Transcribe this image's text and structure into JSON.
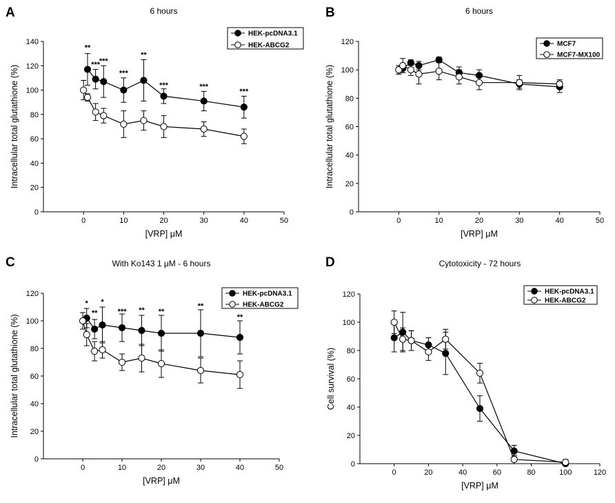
{
  "chart_data": [
    {
      "id": "A",
      "panel_letter": "A",
      "type": "line",
      "title": "6 hours",
      "xlabel": "[VRP] μM",
      "ylabel": "Intracellular total glutathione (%)",
      "xlim": [
        -10,
        50
      ],
      "ylim": [
        0,
        140
      ],
      "xticks": [
        0,
        10,
        20,
        30,
        40,
        50
      ],
      "yticks": [
        0,
        20,
        40,
        60,
        80,
        100,
        120,
        140
      ],
      "legend_position": "top-right",
      "x": [
        0,
        1,
        3,
        5,
        10,
        15,
        20,
        30,
        40
      ],
      "series": [
        {
          "name": "HEK-pcDNA3.1",
          "marker": "filled",
          "x": [
            1,
            3,
            5,
            10,
            15,
            20,
            30,
            40
          ],
          "values": [
            117,
            109,
            107,
            100,
            108,
            95,
            91,
            86
          ],
          "err": [
            13,
            8,
            13,
            10,
            17,
            6,
            8,
            9
          ]
        },
        {
          "name": "HEK-ABCG2",
          "marker": "open",
          "x": [
            0,
            1,
            3,
            5,
            10,
            15,
            20,
            30,
            40
          ],
          "values": [
            100,
            94,
            82,
            79,
            72,
            75,
            70,
            68,
            62
          ],
          "err": [
            8,
            3,
            7,
            6,
            11,
            8,
            9,
            6,
            6
          ]
        }
      ],
      "annotations": [
        {
          "x": 1,
          "label": "**",
          "y": 133
        },
        {
          "x": 3,
          "label": "***",
          "y": 119
        },
        {
          "x": 5,
          "label": "***",
          "y": 122
        },
        {
          "x": 10,
          "label": "***",
          "y": 112
        },
        {
          "x": 15,
          "label": "**",
          "y": 127
        },
        {
          "x": 20,
          "label": "***",
          "y": 102
        },
        {
          "x": 30,
          "label": "***",
          "y": 101
        },
        {
          "x": 40,
          "label": "***",
          "y": 97
        }
      ]
    },
    {
      "id": "B",
      "panel_letter": "B",
      "type": "line",
      "title": "6 hours",
      "xlabel": "[VRP] μM",
      "ylabel": "Intracellular total glutathione (%)",
      "xlim": [
        -10,
        50
      ],
      "ylim": [
        0,
        120
      ],
      "xticks": [
        0,
        10,
        20,
        30,
        40,
        50
      ],
      "yticks": [
        0,
        20,
        40,
        60,
        80,
        100,
        120
      ],
      "legend_position": "top-right",
      "series": [
        {
          "name": "MCF7",
          "marker": "filled",
          "x": [
            0,
            1,
            3,
            5,
            10,
            15,
            20,
            30,
            40
          ],
          "values": [
            100,
            101,
            105,
            103,
            107,
            98,
            96,
            90,
            88
          ],
          "err": [
            3,
            3,
            2,
            3,
            2,
            4,
            4,
            3,
            4
          ]
        },
        {
          "name": "MCF7-MX100",
          "marker": "open",
          "x": [
            0,
            1,
            3,
            5,
            10,
            15,
            20,
            30,
            40
          ],
          "values": [
            100,
            103,
            100,
            97,
            99,
            95,
            91,
            91,
            90
          ],
          "err": [
            3,
            5,
            4,
            7,
            6,
            5,
            5,
            5,
            3
          ]
        }
      ],
      "annotations": []
    },
    {
      "id": "C",
      "panel_letter": "C",
      "type": "line",
      "title": "With Ko143 1 μM - 6 hours",
      "xlabel": "[VRP] μM",
      "ylabel": "Intracellular total glutathione (%)",
      "xlim": [
        -10,
        50
      ],
      "ylim": [
        0,
        120
      ],
      "xticks": [
        0,
        10,
        20,
        30,
        40,
        50
      ],
      "yticks": [
        0,
        20,
        40,
        60,
        80,
        100,
        120
      ],
      "legend_position": "top-right",
      "series": [
        {
          "name": "HEK-pcDNA3.1",
          "marker": "filled",
          "x": [
            1,
            3,
            5,
            10,
            15,
            20,
            30,
            40
          ],
          "values": [
            102,
            94,
            97,
            95,
            93,
            91,
            91,
            88
          ],
          "err": [
            7,
            7,
            13,
            10,
            11,
            13,
            17,
            12
          ]
        },
        {
          "name": "HEK-ABCG2",
          "marker": "open",
          "x": [
            0,
            1,
            3,
            5,
            10,
            15,
            20,
            30,
            40
          ],
          "values": [
            100,
            90,
            78,
            79,
            70,
            73,
            69,
            64,
            61
          ],
          "err": [
            6,
            8,
            7,
            6,
            6,
            10,
            10,
            9,
            10
          ]
        }
      ],
      "annotations": [
        {
          "x": 1,
          "label": "*",
          "y": 111
        },
        {
          "x": 3,
          "label": "**",
          "y": 104
        },
        {
          "x": 5,
          "label": "*",
          "y": 112
        },
        {
          "x": 10,
          "label": "***",
          "y": 105
        },
        {
          "x": 15,
          "label": "**",
          "y": 106
        },
        {
          "x": 20,
          "label": "**",
          "y": 105
        },
        {
          "x": 30,
          "label": "**",
          "y": 109
        },
        {
          "x": 40,
          "label": "**",
          "y": 101
        }
      ]
    },
    {
      "id": "D",
      "panel_letter": "D",
      "type": "line",
      "title": "Cytotoxicity - 72 hours",
      "xlabel": "[VRP] μM",
      "ylabel": "Cell survival (%)",
      "xlim": [
        -20,
        120
      ],
      "ylim": [
        0,
        120
      ],
      "xticks": [
        0,
        20,
        40,
        60,
        80,
        100,
        120
      ],
      "yticks": [
        0,
        20,
        40,
        60,
        80,
        100,
        120
      ],
      "legend_position": "top-right",
      "series": [
        {
          "name": "HEK-pcDNA3.1",
          "marker": "filled",
          "x": [
            0,
            5,
            10,
            20,
            30,
            50,
            70,
            100
          ],
          "values": [
            89,
            93,
            87,
            84,
            78,
            39,
            9,
            0
          ],
          "err": [
            10,
            14,
            7,
            5,
            15,
            9,
            4,
            1
          ]
        },
        {
          "name": "HEK-ABCG2",
          "marker": "open",
          "x": [
            0,
            5,
            10,
            20,
            30,
            50,
            70,
            100
          ],
          "values": [
            100,
            88,
            87,
            79,
            88,
            64,
            3,
            1
          ],
          "err": [
            8,
            8,
            7,
            6,
            7,
            7,
            3,
            2
          ]
        }
      ],
      "annotations": []
    }
  ]
}
